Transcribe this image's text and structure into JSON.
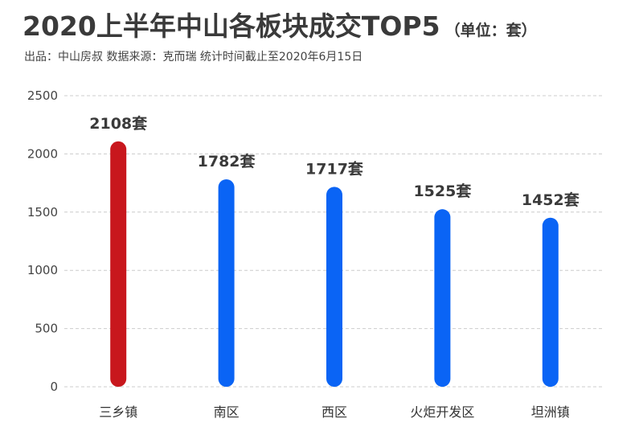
{
  "header": {
    "title": "2020上半年中山各板块成交TOP5",
    "unit": "（单位：套）",
    "source": "出品：中山房叔  数据来源：克而瑞  统计时间截止至2020年6月15日"
  },
  "chart_data": {
    "type": "bar",
    "title": "2020上半年中山各板块成交TOP5",
    "categories": [
      "三乡镇",
      "南区",
      "西区",
      "火炬开发区",
      "坦洲镇"
    ],
    "values": [
      2108,
      1782,
      1717,
      1525,
      1452
    ],
    "value_labels": [
      "2108套",
      "1782套",
      "1717套",
      "1525套",
      "1452套"
    ],
    "value_suffix": "套",
    "ylim": [
      0,
      2500
    ],
    "yticks": [
      0,
      500,
      1000,
      1500,
      2000,
      2500
    ],
    "grid": true,
    "colors": {
      "highlight": "#c8171d",
      "default": "#0a64f5",
      "grid": "#cccccc",
      "text": "#3a3a3a"
    },
    "highlight_index": 0
  }
}
